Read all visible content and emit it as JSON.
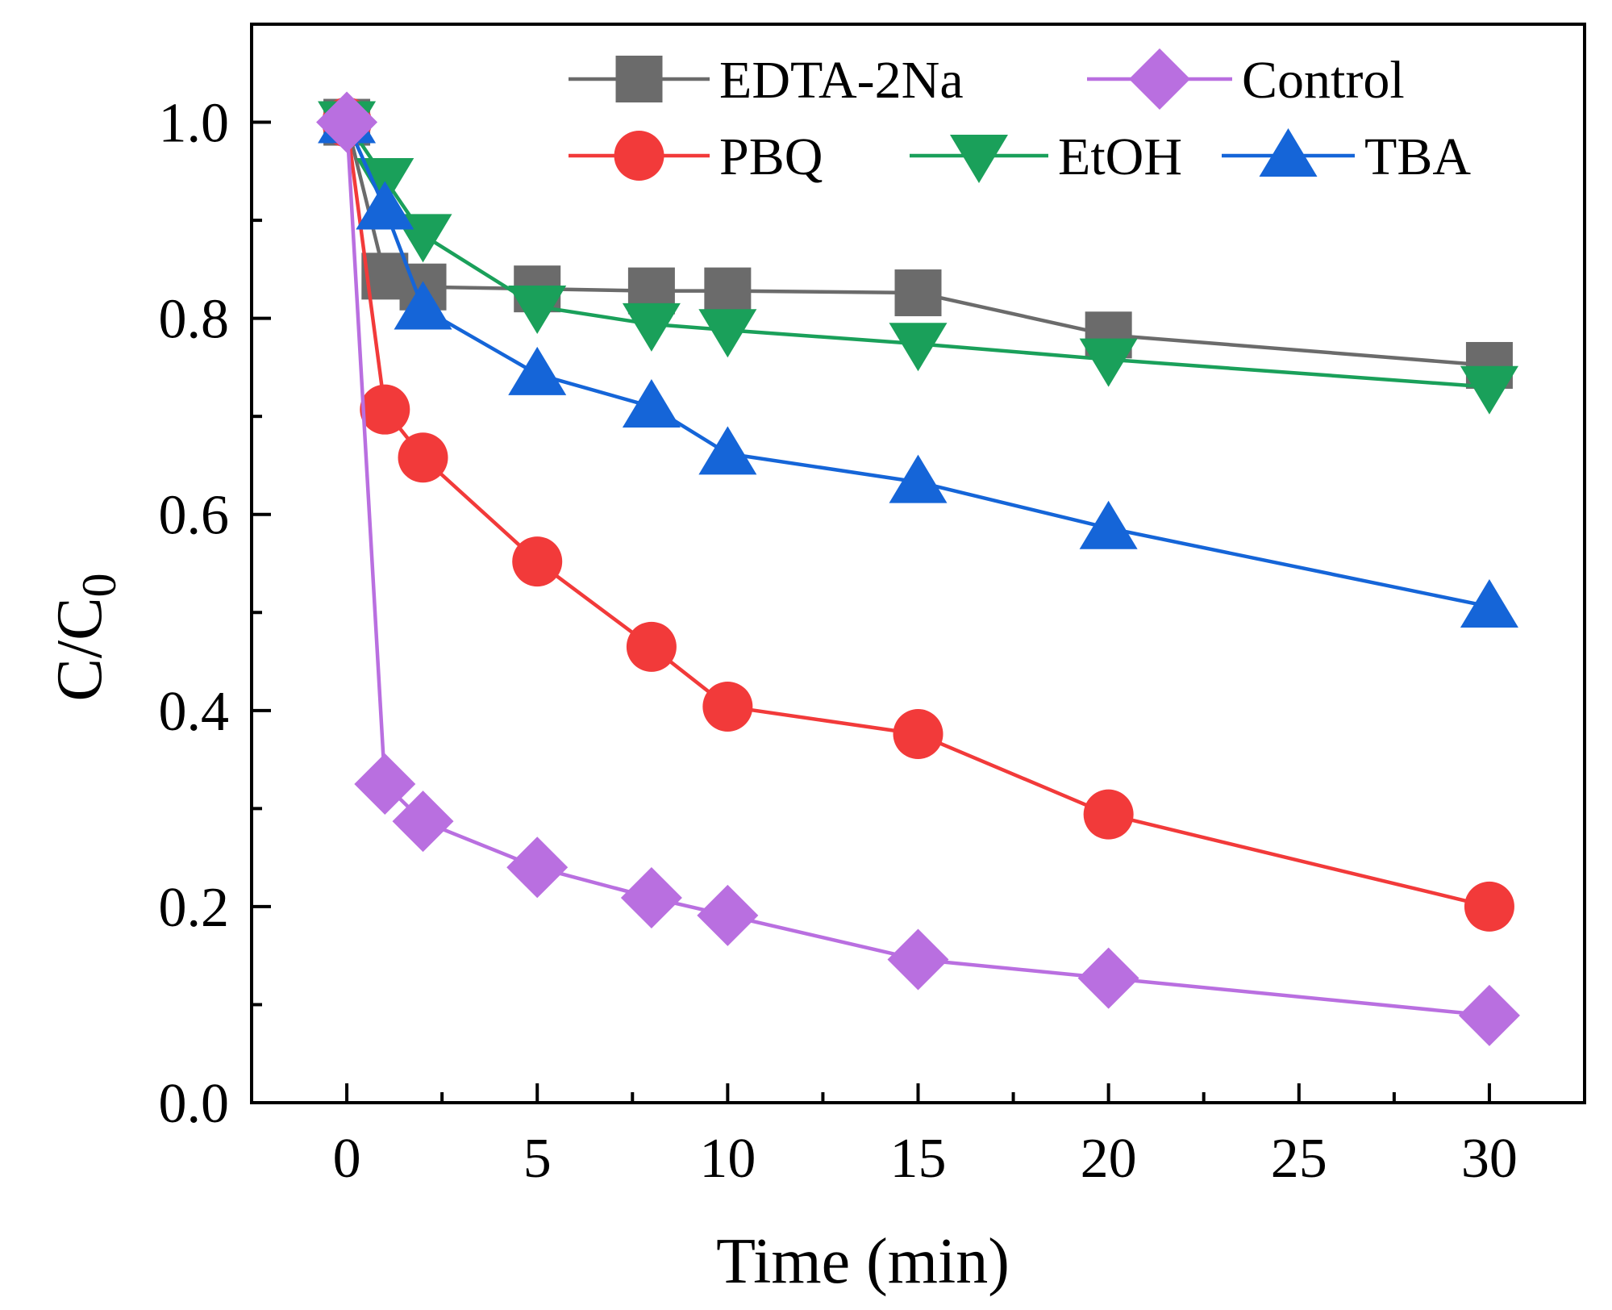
{
  "chart_data": {
    "type": "line",
    "title": "",
    "xlabel": "Time (min)",
    "ylabel_main": "C/C",
    "ylabel_sub": "0",
    "xlim": [
      -2.5,
      32.5
    ],
    "ylim": [
      0.0,
      1.1
    ],
    "x_ticks": [
      0,
      5,
      10,
      15,
      20,
      25,
      30
    ],
    "x_tick_labels": [
      "0",
      "5",
      "10",
      "15",
      "20",
      "25",
      "30"
    ],
    "y_ticks": [
      0.0,
      0.2,
      0.4,
      0.6,
      0.8,
      1.0
    ],
    "y_tick_labels": [
      "0.0",
      "0.2",
      "0.4",
      "0.6",
      "0.8",
      "1.0"
    ],
    "grid": false,
    "legend_position": "top-right",
    "x": [
      0,
      1,
      2,
      5,
      8,
      10,
      15,
      20,
      30
    ],
    "series": [
      {
        "name": "EDTA-2Na",
        "color": "#6b6b6b",
        "marker": "square",
        "values": [
          1.0,
          0.843,
          0.832,
          0.83,
          0.828,
          0.828,
          0.826,
          0.783,
          0.752
        ]
      },
      {
        "name": "PBQ",
        "color": "#f23a3a",
        "marker": "circle",
        "values": [
          1.0,
          0.707,
          0.658,
          0.552,
          0.465,
          0.404,
          0.376,
          0.294,
          0.2
        ]
      },
      {
        "name": "EtOH",
        "color": "#1aa05a",
        "marker": "triangle-down",
        "values": [
          1.0,
          0.942,
          0.885,
          0.812,
          0.794,
          0.788,
          0.774,
          0.758,
          0.73
        ]
      },
      {
        "name": "TBA",
        "color": "#1565d8",
        "marker": "triangle-up",
        "values": [
          1.0,
          0.912,
          0.81,
          0.743,
          0.71,
          0.662,
          0.633,
          0.586,
          0.506
        ]
      },
      {
        "name": "Control",
        "color": "#b96fe0",
        "marker": "diamond",
        "values": [
          1.0,
          0.325,
          0.287,
          0.24,
          0.209,
          0.191,
          0.146,
          0.127,
          0.089
        ]
      }
    ]
  }
}
